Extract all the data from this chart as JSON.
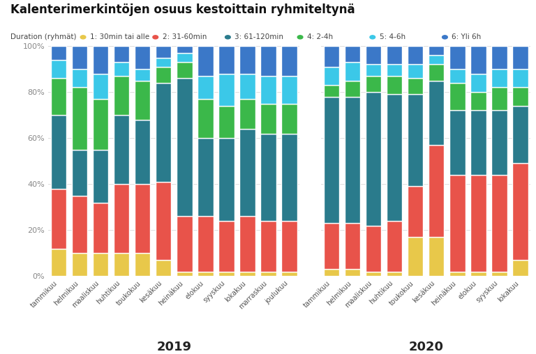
{
  "title": "Kalenterimerkintöjen osuus kestoittain ryhmiteltynä",
  "legend_title": "Duration (ryhmät)",
  "legend_labels": [
    "1: 30min tai alle",
    "2: 31-60min",
    "3: 61-120min",
    "4: 2-4h",
    "5: 4-6h",
    "6: Yli 6h"
  ],
  "colors": [
    "#E8C84A",
    "#E8534A",
    "#2A7B8C",
    "#3BB84A",
    "#3BC8E8",
    "#3B78C8"
  ],
  "months_2019": [
    "tammikuu",
    "helmikuu",
    "maaliskuu",
    "huhtikuu",
    "toukokuu",
    "kesäkuu",
    "heinäkuu",
    "elokuu",
    "syyskuu",
    "lokakuu",
    "marraskuu",
    "joulukuu"
  ],
  "months_2020": [
    "tammikuu",
    "helmikuu",
    "maaliskuu",
    "huhtikuu",
    "toukokuu",
    "kesäkuu",
    "heinäkuu",
    "elokuu",
    "syyskuu",
    "lokakuu"
  ],
  "year_2019_label": "2019",
  "year_2020_label": "2020",
  "data_2019": [
    [
      0.12,
      0.1,
      0.1,
      0.1,
      0.1,
      0.07,
      0.02,
      0.02,
      0.02,
      0.02,
      0.02,
      0.02
    ],
    [
      0.26,
      0.25,
      0.22,
      0.3,
      0.3,
      0.34,
      0.24,
      0.24,
      0.22,
      0.24,
      0.22,
      0.22
    ],
    [
      0.32,
      0.2,
      0.23,
      0.3,
      0.28,
      0.43,
      0.6,
      0.34,
      0.36,
      0.38,
      0.38,
      0.38
    ],
    [
      0.16,
      0.27,
      0.22,
      0.17,
      0.17,
      0.07,
      0.07,
      0.17,
      0.14,
      0.13,
      0.13,
      0.13
    ],
    [
      0.08,
      0.08,
      0.11,
      0.06,
      0.05,
      0.04,
      0.04,
      0.1,
      0.14,
      0.11,
      0.12,
      0.12
    ],
    [
      0.06,
      0.1,
      0.12,
      0.07,
      0.1,
      0.05,
      0.03,
      0.13,
      0.12,
      0.12,
      0.13,
      0.13
    ]
  ],
  "data_2020": [
    [
      0.03,
      0.03,
      0.02,
      0.02,
      0.17,
      0.17,
      0.02,
      0.02,
      0.02,
      0.07
    ],
    [
      0.2,
      0.2,
      0.2,
      0.22,
      0.22,
      0.4,
      0.42,
      0.42,
      0.42,
      0.42
    ],
    [
      0.55,
      0.55,
      0.58,
      0.55,
      0.4,
      0.28,
      0.28,
      0.28,
      0.28,
      0.25
    ],
    [
      0.05,
      0.07,
      0.07,
      0.08,
      0.07,
      0.07,
      0.12,
      0.08,
      0.1,
      0.08
    ],
    [
      0.08,
      0.08,
      0.05,
      0.05,
      0.06,
      0.04,
      0.06,
      0.08,
      0.08,
      0.08
    ],
    [
      0.09,
      0.07,
      0.08,
      0.08,
      0.08,
      0.04,
      0.1,
      0.12,
      0.1,
      0.1
    ]
  ],
  "background_color": "#FFFFFF",
  "grid_color": "#DDDDDD",
  "ylim": [
    0,
    1.0
  ],
  "yticks": [
    0,
    0.2,
    0.4,
    0.6,
    0.8,
    1.0
  ],
  "ytick_labels": [
    "0%",
    "20%",
    "40%",
    "60%",
    "80%",
    "100%"
  ]
}
